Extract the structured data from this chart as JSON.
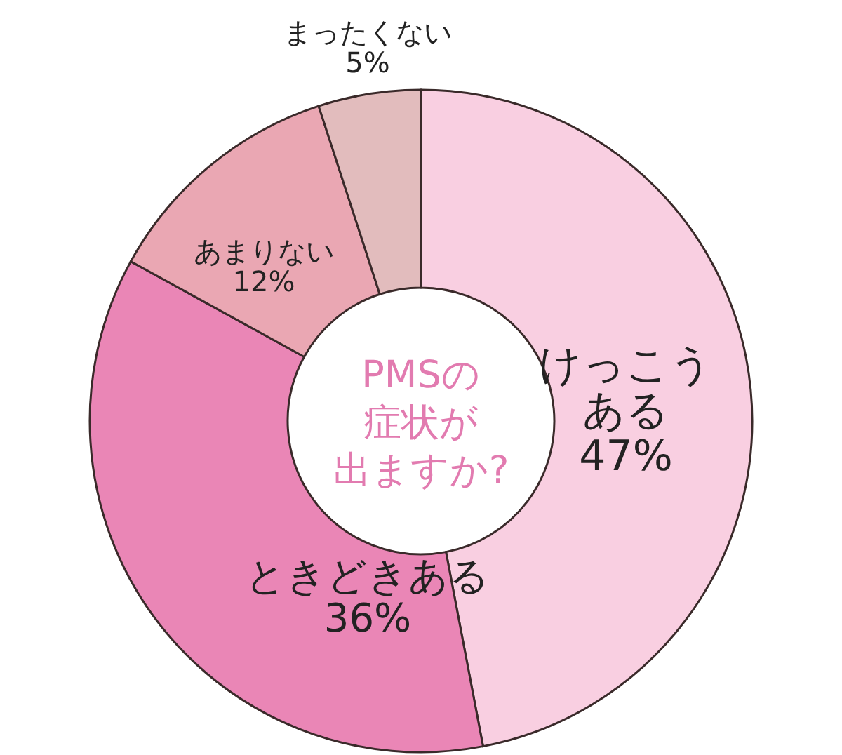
{
  "chart_data": {
    "type": "donut",
    "title": "PMSの症状が出ますか?",
    "categories": [
      "けっこうある",
      "ときどきある",
      "あまりない",
      "まったくない"
    ],
    "values": [
      47,
      36,
      12,
      5
    ],
    "value_labels": [
      "47%",
      "36%",
      "12%",
      "5%"
    ],
    "colors": [
      "#f9cfe1",
      "#ea86b6",
      "#eaa7b3",
      "#e2bcbd"
    ]
  }
}
